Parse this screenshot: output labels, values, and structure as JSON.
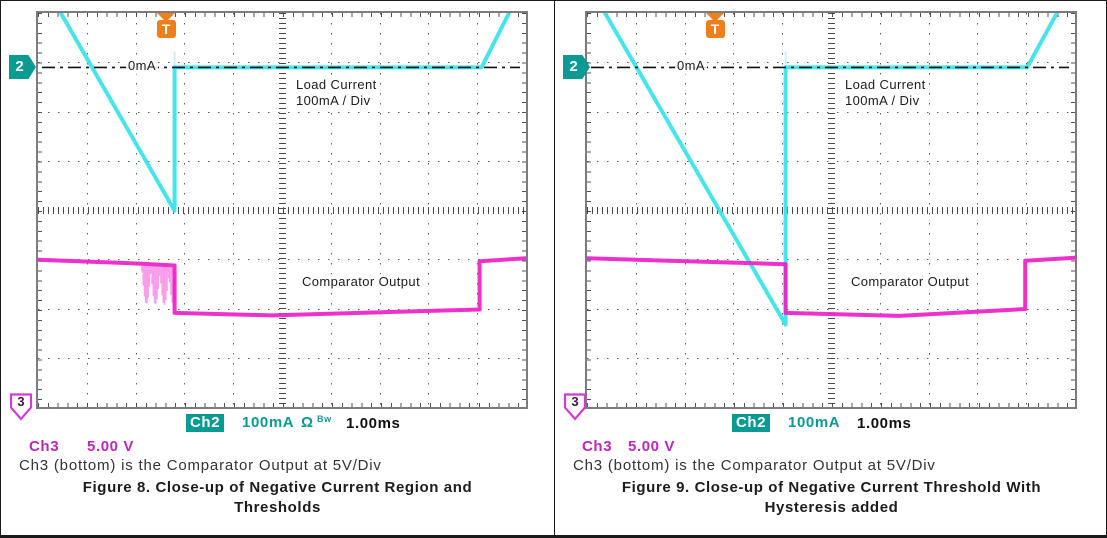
{
  "colors": {
    "ch2_trace": "#38e2e8",
    "ch2_transition": "#c4f4f6",
    "ch3_trace": "#ee1fc8",
    "ch3_noise": "#fa8ce8",
    "teal_readout": "#0a9a94",
    "magenta_readout": "#b829b8",
    "trigger_orange": "#ef7f1a",
    "zero_line": "#101010"
  },
  "panels": [
    {
      "scope": {
        "trigger_label": "T",
        "ch2_marker": "2",
        "ch3_marker": "3",
        "zero_label": "0mA",
        "load_label_line1": "Load Current",
        "load_label_line2": "100mA / Div",
        "comparator_label": "Comparator Output",
        "readout": {
          "ch2_badge": "Ch2",
          "ch2_scale": "100mA",
          "ohm": "Ω",
          "bw": "Bw",
          "timebase": "1.00ms",
          "ch3_label": "Ch3",
          "ch3_scale": "5.00 V"
        }
      },
      "note": "Ch3 (bottom) is the Comparator Output at 5V/Div",
      "caption_line1": "Figure 8. Close-up of Negative Current Region and",
      "caption_line2": "Thresholds"
    },
    {
      "scope": {
        "trigger_label": "T",
        "ch2_marker": "2",
        "ch3_marker": "3",
        "zero_label": "0mA",
        "load_label_line1": "Load Current",
        "load_label_line2": "100mA / Div",
        "comparator_label": "Comparator Output",
        "readout": {
          "ch2_badge": "Ch2",
          "ch2_scale": "100mA",
          "timebase": "1.00ms",
          "ch3_label": "Ch3",
          "ch3_scale": "5.00 V"
        }
      },
      "note": "Ch3 (bottom) is the Comparator Output at 5V/Div",
      "caption_line1": "Figure 9. Close-up of Negative Current Threshold With",
      "caption_line2": "Hysteresis added"
    }
  ],
  "chart_data": [
    {
      "type": "line",
      "title": "Figure 8. Close-up of Negative Current Region and Thresholds",
      "x_unit": "ms",
      "time_per_div_ms": 1.0,
      "h_divisions": 10,
      "v_divisions": 8,
      "annotations": [
        "0mA",
        "Load Current 100mA / Div",
        "Comparator Output"
      ],
      "series": [
        {
          "name": "Load Current (Ch2)",
          "unit": "mA",
          "per_div": 100,
          "zero_div_from_top": 1.105,
          "color": "#38e2e8",
          "points": [
            [
              0.47,
              110
            ],
            [
              2.8,
              -291
            ],
            [
              2.8,
              0
            ],
            [
              9.09,
              0
            ],
            [
              9.65,
              110
            ]
          ]
        },
        {
          "name": "Comparator Output (Ch3)",
          "unit": "V",
          "per_div": 5,
          "zero_div_from_top": 6.07,
          "color": "#ee1fc8",
          "points": [
            [
              0,
              5.3
            ],
            [
              2.13,
              4.9
            ],
            [
              2.8,
              4.72
            ],
            [
              2.8,
              -0.1
            ],
            [
              4.8,
              -0.35
            ],
            [
              9.05,
              0.25
            ],
            [
              9.05,
              5.15
            ],
            [
              10,
              5.45
            ]
          ]
        }
      ],
      "noise_region": {
        "series": 1,
        "t_start": 2.13,
        "t_end": 2.8,
        "depth_div": 0.65
      }
    },
    {
      "type": "line",
      "title": "Figure 9. Close-up of Negative Current Threshold With Hysteresis added",
      "x_unit": "ms",
      "time_per_div_ms": 1.0,
      "h_divisions": 10,
      "v_divisions": 8,
      "annotations": [
        "0mA",
        "Load Current 100mA / Div",
        "Comparator Output"
      ],
      "series": [
        {
          "name": "Load Current (Ch2)",
          "unit": "mA",
          "per_div": 100,
          "zero_div_from_top": 1.105,
          "color": "#38e2e8",
          "points": [
            [
              0.37,
              110
            ],
            [
              4.07,
              -522
            ],
            [
              4.07,
              0
            ],
            [
              9.02,
              0
            ],
            [
              9.63,
              110
            ]
          ]
        },
        {
          "name": "Comparator Output (Ch3)",
          "unit": "V",
          "per_div": 5,
          "zero_div_from_top": 6.07,
          "color": "#ee1fc8",
          "points": [
            [
              0,
              5.45
            ],
            [
              4.07,
              4.85
            ],
            [
              4.07,
              -0.1
            ],
            [
              6.4,
              -0.4
            ],
            [
              8.98,
              0.3
            ],
            [
              8.98,
              5.2
            ],
            [
              10,
              5.5
            ]
          ]
        }
      ],
      "noise_region": null
    }
  ]
}
